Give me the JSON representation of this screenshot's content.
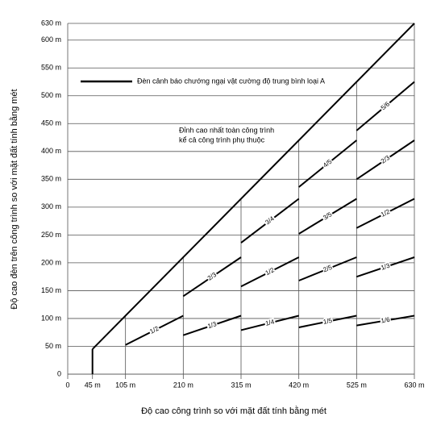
{
  "chart_data": {
    "type": "line",
    "xlabel": "Độ cao công trình so với mặt đất tính bằng mét",
    "ylabel": "Độ cao đèn trên công trình so với mặt đất tính bằng mét",
    "legend": "Đèn cảnh báo chướng ngại vật cường độ trung bình loại A",
    "annotation": [
      "Đỉnh cao nhất toàn công trình",
      "kể cả công trình phụ thuộc"
    ],
    "xlim": [
      0,
      630
    ],
    "ylim": [
      0,
      630
    ],
    "xticks": [
      0,
      {
        "value": 45,
        "label": "45 m"
      },
      {
        "value": 105,
        "label": "105 m"
      },
      {
        "value": 210,
        "label": "210 m"
      },
      {
        "value": 315,
        "label": "315 m"
      },
      {
        "value": 420,
        "label": "420 m"
      },
      {
        "value": 525,
        "label": "525 m"
      },
      {
        "value": 630,
        "label": "630 m"
      }
    ],
    "yticks": [
      0,
      {
        "value": 50,
        "label": "50 m"
      },
      {
        "value": 100,
        "label": "100 m"
      },
      {
        "value": 150,
        "label": "150 m"
      },
      {
        "value": 200,
        "label": "200 m"
      },
      {
        "value": 250,
        "label": "250 m"
      },
      {
        "value": 300,
        "label": "300 m"
      },
      {
        "value": 350,
        "label": "350 m"
      },
      {
        "value": 400,
        "label": "400 m"
      },
      {
        "value": 450,
        "label": "450 m"
      },
      {
        "value": 500,
        "label": "500 m"
      },
      {
        "value": 550,
        "label": "550 m"
      },
      {
        "value": 600,
        "label": "600 m"
      },
      {
        "value": 630,
        "label": "630 m"
      }
    ],
    "grid": true,
    "color": "#000000",
    "series": [
      {
        "x": [
          45,
          630
        ],
        "values": [
          45,
          630
        ]
      },
      {
        "name": "1/2",
        "x": [
          105,
          210
        ],
        "values": [
          52.5,
          105
        ]
      },
      {
        "name": "2/3",
        "x": [
          210,
          315
        ],
        "values": [
          140,
          210
        ]
      },
      {
        "name": "1/3",
        "x": [
          210,
          315
        ],
        "values": [
          70,
          105
        ]
      },
      {
        "name": "3/4",
        "x": [
          315,
          420
        ],
        "values": [
          236,
          315
        ]
      },
      {
        "name": "1/2",
        "x": [
          315,
          420
        ],
        "values": [
          157.5,
          210
        ]
      },
      {
        "name": "1/4",
        "x": [
          315,
          420
        ],
        "values": [
          79,
          105
        ]
      },
      {
        "name": "4/5",
        "x": [
          420,
          525
        ],
        "values": [
          336,
          420
        ]
      },
      {
        "name": "3/5",
        "x": [
          420,
          525
        ],
        "values": [
          252,
          315
        ]
      },
      {
        "name": "2/5",
        "x": [
          420,
          525
        ],
        "values": [
          168,
          210
        ]
      },
      {
        "name": "1/5",
        "x": [
          420,
          525
        ],
        "values": [
          84,
          105
        ]
      },
      {
        "name": "5/6",
        "x": [
          525,
          630
        ],
        "values": [
          437.5,
          525
        ]
      },
      {
        "name": "2/3",
        "x": [
          525,
          630
        ],
        "values": [
          350,
          420
        ]
      },
      {
        "name": "1/2",
        "x": [
          525,
          630
        ],
        "values": [
          262.5,
          315
        ]
      },
      {
        "name": "1/3",
        "x": [
          525,
          630
        ],
        "values": [
          175,
          210
        ]
      },
      {
        "name": "1/6",
        "x": [
          525,
          630
        ],
        "values": [
          87.5,
          105
        ]
      }
    ]
  }
}
